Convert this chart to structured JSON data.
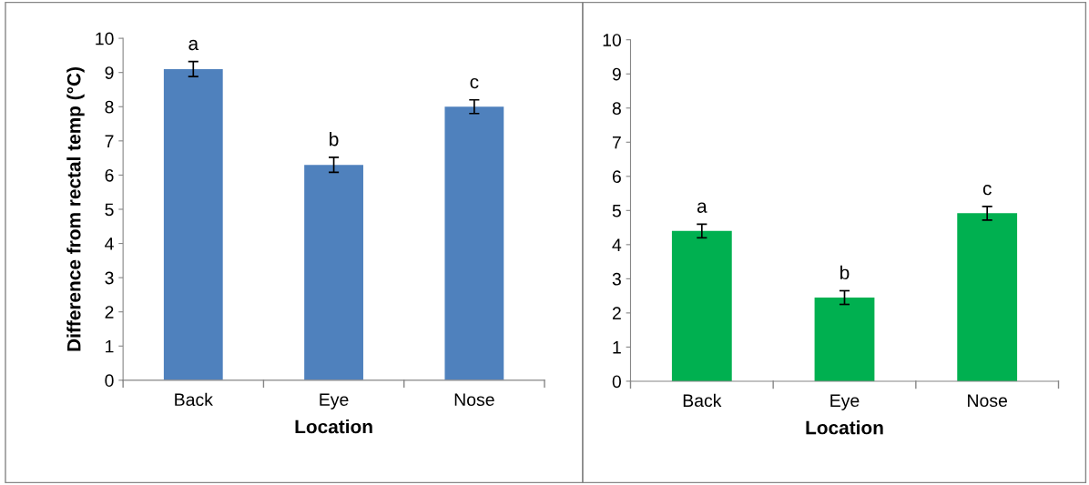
{
  "chart_data": [
    {
      "type": "bar",
      "categories": [
        "Back",
        "Eye",
        "Nose"
      ],
      "values": [
        9.1,
        6.3,
        8.0
      ],
      "errors": [
        0.22,
        0.22,
        0.2
      ],
      "color": "#4f81bd",
      "ylim": [
        0,
        10
      ],
      "yticks": [
        0,
        1,
        2,
        3,
        4,
        5,
        6,
        7,
        8,
        9,
        10
      ],
      "xlabel": "Location",
      "ylabel": "Difference from rectal temp (°C)",
      "grid": false,
      "legend": false,
      "annotations": [
        "a",
        "b",
        "c"
      ]
    },
    {
      "type": "bar",
      "categories": [
        "Back",
        "Eye",
        "Nose"
      ],
      "values": [
        4.4,
        2.45,
        4.92
      ],
      "errors": [
        0.2,
        0.2,
        0.2
      ],
      "color": "#00b050",
      "ylim": [
        0,
        10
      ],
      "yticks": [
        0,
        1,
        2,
        3,
        4,
        5,
        6,
        7,
        8,
        9,
        10
      ],
      "xlabel": "Location",
      "grid": false,
      "legend": false,
      "annotations": [
        "a",
        "b",
        "c"
      ]
    }
  ]
}
